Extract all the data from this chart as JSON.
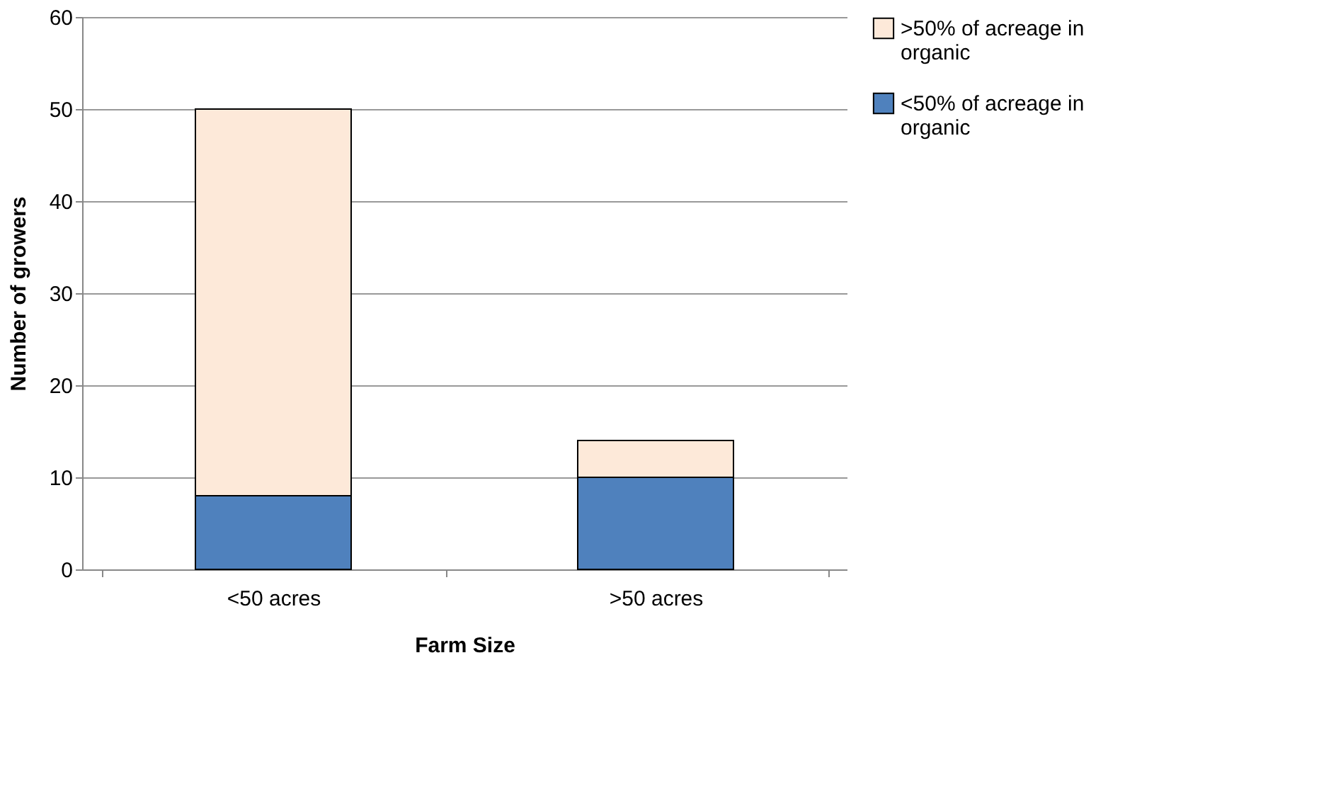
{
  "chart_data": {
    "type": "bar",
    "stacked": true,
    "xlabel": "Farm Size",
    "ylabel": "Number of growers",
    "categories": [
      "<50 acres",
      ">50 acres"
    ],
    "series": [
      {
        "name": "<50% of acreage in organic",
        "color": "#4f81bd",
        "values": [
          8,
          10
        ]
      },
      {
        "name": ">50% of acreage in organic",
        "color": "#fde9d9",
        "values": [
          42,
          4
        ]
      }
    ],
    "ylim": [
      0,
      60
    ],
    "yticks": [
      0,
      10,
      20,
      30,
      40,
      50,
      60
    ],
    "grid": "y",
    "legend": "right"
  }
}
